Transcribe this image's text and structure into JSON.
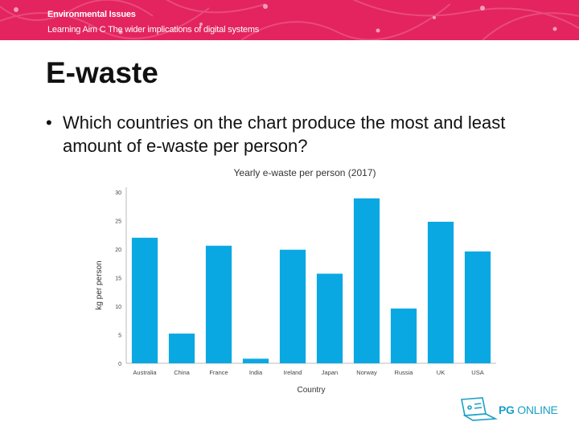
{
  "header": {
    "subject": "Environmental Issues",
    "learning_aim": "Learning Aim C The wider implications of digital systems"
  },
  "slide": {
    "title": "E-waste",
    "bullet": "Which countries on the chart produce the most and least amount of e-waste per person?"
  },
  "chart_data": {
    "type": "bar",
    "title": "Yearly e-waste per person (2017)",
    "xlabel": "Country",
    "ylabel": "kg per person",
    "categories": [
      "Australia",
      "China",
      "France",
      "India",
      "Ireland",
      "Japan",
      "Norway",
      "Russia",
      "UK",
      "USA"
    ],
    "values": [
      22,
      5.2,
      20.6,
      0.8,
      19.9,
      15.7,
      28.9,
      9.6,
      24.8,
      19.6
    ],
    "ylim": [
      0,
      30
    ],
    "yticks": [
      0,
      5,
      10,
      15,
      20,
      25,
      30
    ],
    "bar_color": "#0aa8e2",
    "grid": false,
    "legend": "none"
  },
  "logo": {
    "brand_bold": "PG",
    "brand_rest": " ONLINE",
    "icon": "laptop-icon"
  },
  "colors": {
    "banner": "#e3245f",
    "accent": "#1aa0c8"
  }
}
